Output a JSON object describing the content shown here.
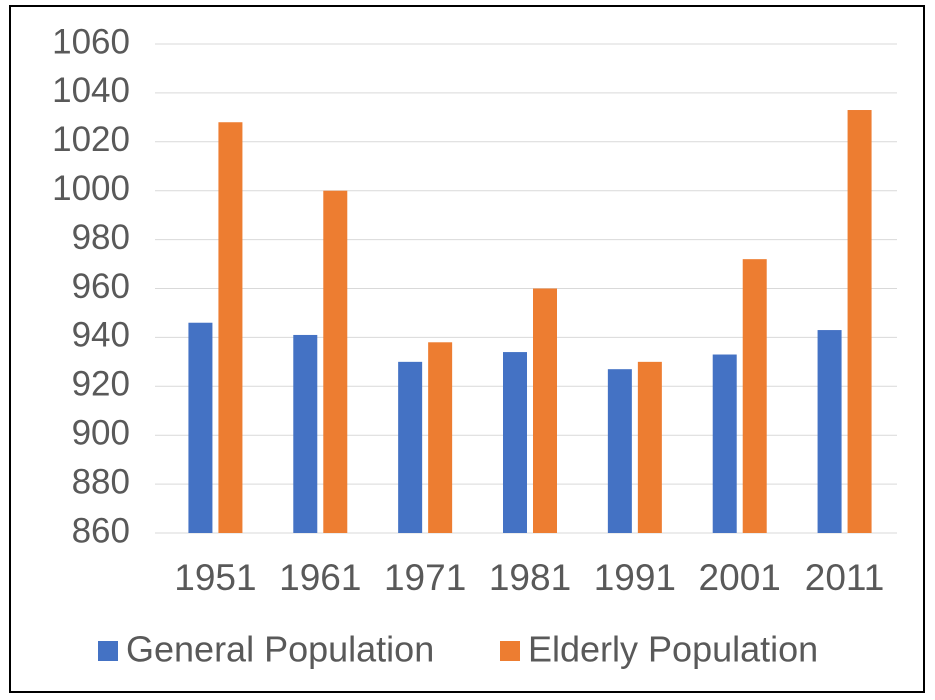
{
  "chart_data": {
    "type": "bar",
    "categories": [
      "1951",
      "1961",
      "1971",
      "1981",
      "1991",
      "2001",
      "2011"
    ],
    "series": [
      {
        "name": "General Population",
        "color": "#4472c4",
        "values": [
          946,
          941,
          930,
          934,
          927,
          933,
          943
        ]
      },
      {
        "name": "Elderly Population",
        "color": "#ed7d31",
        "values": [
          1028,
          1000,
          938,
          960,
          930,
          972,
          1033
        ]
      }
    ],
    "ylim": [
      860,
      1060
    ],
    "yticks": [
      860,
      880,
      900,
      920,
      940,
      960,
      980,
      1000,
      1020,
      1040,
      1060
    ],
    "grid": true,
    "legend": "bottom"
  }
}
